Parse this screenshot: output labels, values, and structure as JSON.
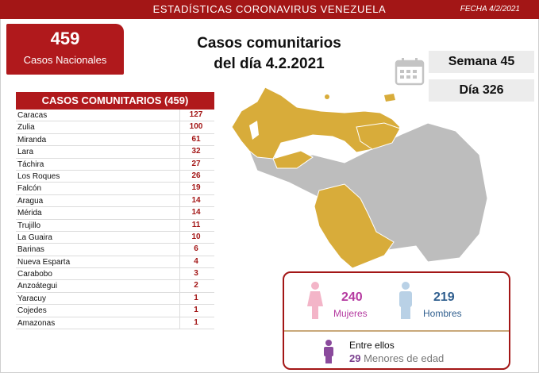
{
  "header": {
    "title": "ESTADÍSTICAS CORONAVIRUS VENEZUELA",
    "date": "FECHA 4/2/2021"
  },
  "total": {
    "number": "459",
    "label": "Casos Nacionales"
  },
  "main_title": {
    "line1": "Casos comunitarios",
    "line2": "del día 4.2.2021"
  },
  "semana": "Semana 45",
  "dia": "Día 326",
  "table": {
    "header": "CASOS COMUNITARIOS (459)",
    "rows": [
      {
        "state": "Caracas",
        "count": "127"
      },
      {
        "state": "Zulia",
        "count": "100"
      },
      {
        "state": "Miranda",
        "count": "61"
      },
      {
        "state": "Lara",
        "count": "32"
      },
      {
        "state": "Táchira",
        "count": "27"
      },
      {
        "state": "Los Roques",
        "count": "26"
      },
      {
        "state": "Falcón",
        "count": "19"
      },
      {
        "state": "Aragua",
        "count": "14"
      },
      {
        "state": "Mérida",
        "count": "14"
      },
      {
        "state": "Trujillo",
        "count": "11"
      },
      {
        "state": "La Guaira",
        "count": "10"
      },
      {
        "state": "Barinas",
        "count": "6"
      },
      {
        "state": "Nueva Esparta",
        "count": "4"
      },
      {
        "state": "Carabobo",
        "count": "3"
      },
      {
        "state": "Anzoátegui",
        "count": "2"
      },
      {
        "state": "Yaracuy",
        "count": "1"
      },
      {
        "state": "Cojedes",
        "count": "1"
      },
      {
        "state": "Amazonas",
        "count": "1"
      }
    ]
  },
  "gender": {
    "mujeres_num": "240",
    "mujeres_label": "Mujeres",
    "hombres_num": "219",
    "hombres_label": "Hombres",
    "entre_ellos": "Entre ellos",
    "menores_num": "29",
    "menores_label": "Menores de edad"
  },
  "colors": {
    "brand_red": "#a31616",
    "map_affected": "#d8ac3a",
    "map_unaffected": "#bdbdbd",
    "female": "#b53aa0",
    "male": "#2f5e8e"
  },
  "icons": [
    "calendar-icon",
    "female-person-icon",
    "male-person-icon",
    "child-person-icon"
  ]
}
